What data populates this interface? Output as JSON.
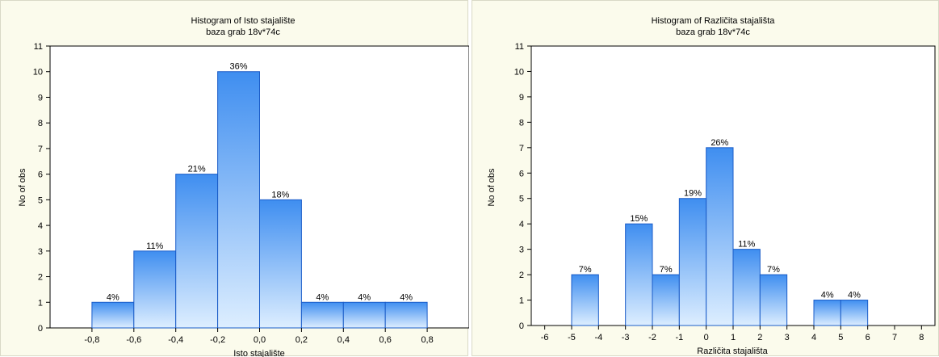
{
  "chart_data": [
    {
      "type": "bar",
      "title": "Histogram of Isto stajalište",
      "subtitle": "baza grab 18v*74c",
      "xlabel": "Isto stajalište",
      "ylabel": "No of obs",
      "ylim": [
        0,
        11
      ],
      "yticks": [
        "0",
        "1",
        "2",
        "3",
        "4",
        "5",
        "6",
        "7",
        "8",
        "9",
        "10",
        "11"
      ],
      "xlim": [
        -1.0,
        1.0
      ],
      "xticks": [
        {
          "value": -0.8,
          "label": "-0,8"
        },
        {
          "value": -0.6,
          "label": "-0,6"
        },
        {
          "value": -0.4,
          "label": "-0,4"
        },
        {
          "value": -0.2,
          "label": "-0,2"
        },
        {
          "value": 0.0,
          "label": "0,0"
        },
        {
          "value": 0.2,
          "label": "0,2"
        },
        {
          "value": 0.4,
          "label": "0,4"
        },
        {
          "value": 0.6,
          "label": "0,6"
        },
        {
          "value": 0.8,
          "label": "0,8"
        }
      ],
      "bins": [
        {
          "from": -0.8,
          "to": -0.6,
          "count": 1,
          "label": "4%"
        },
        {
          "from": -0.6,
          "to": -0.4,
          "count": 3,
          "label": "11%"
        },
        {
          "from": -0.4,
          "to": -0.2,
          "count": 6,
          "label": "21%"
        },
        {
          "from": -0.2,
          "to": 0.0,
          "count": 10,
          "label": "36%"
        },
        {
          "from": 0.0,
          "to": 0.2,
          "count": 5,
          "label": "18%"
        },
        {
          "from": 0.2,
          "to": 0.4,
          "count": 1,
          "label": "4%"
        },
        {
          "from": 0.4,
          "to": 0.6,
          "count": 1,
          "label": "4%"
        },
        {
          "from": 0.6,
          "to": 0.8,
          "count": 1,
          "label": "4%"
        }
      ],
      "grid": false,
      "colors": {
        "bar_top": "#3f8ef0",
        "bar_bottom": "#ddeeff",
        "bar_edge": "#1a5cc8"
      }
    },
    {
      "type": "bar",
      "title": "Histogram of Različita stajališta",
      "subtitle": "baza grab 18v*74c",
      "xlabel": "Različita stajališta",
      "ylabel": "No of obs",
      "ylim": [
        0,
        11
      ],
      "yticks": [
        "0",
        "1",
        "2",
        "3",
        "4",
        "5",
        "6",
        "7",
        "8",
        "9",
        "10",
        "11"
      ],
      "xlim": [
        -6.5,
        8.5
      ],
      "xticks": [
        {
          "value": -6,
          "label": "-6"
        },
        {
          "value": -5,
          "label": "-5"
        },
        {
          "value": -4,
          "label": "-4"
        },
        {
          "value": -3,
          "label": "-3"
        },
        {
          "value": -2,
          "label": "-2"
        },
        {
          "value": -1,
          "label": "-1"
        },
        {
          "value": 0,
          "label": "0"
        },
        {
          "value": 1,
          "label": "1"
        },
        {
          "value": 2,
          "label": "2"
        },
        {
          "value": 3,
          "label": "3"
        },
        {
          "value": 4,
          "label": "4"
        },
        {
          "value": 5,
          "label": "5"
        },
        {
          "value": 6,
          "label": "6"
        },
        {
          "value": 7,
          "label": "7"
        },
        {
          "value": 8,
          "label": "8"
        }
      ],
      "bins": [
        {
          "from": -5,
          "to": -4,
          "count": 2,
          "label": "7%"
        },
        {
          "from": -3,
          "to": -2,
          "count": 4,
          "label": "15%"
        },
        {
          "from": -2,
          "to": -1,
          "count": 2,
          "label": "7%"
        },
        {
          "from": -1,
          "to": 0,
          "count": 5,
          "label": "19%"
        },
        {
          "from": 0,
          "to": 1,
          "count": 7,
          "label": "26%"
        },
        {
          "from": 1,
          "to": 2,
          "count": 3,
          "label": "11%"
        },
        {
          "from": 2,
          "to": 3,
          "count": 2,
          "label": "7%"
        },
        {
          "from": 4,
          "to": 5,
          "count": 1,
          "label": "4%"
        },
        {
          "from": 5,
          "to": 6,
          "count": 1,
          "label": "4%"
        }
      ],
      "grid": false,
      "colors": {
        "bar_top": "#3f8ef0",
        "bar_bottom": "#ddeeff",
        "bar_edge": "#1a5cc8"
      }
    }
  ]
}
